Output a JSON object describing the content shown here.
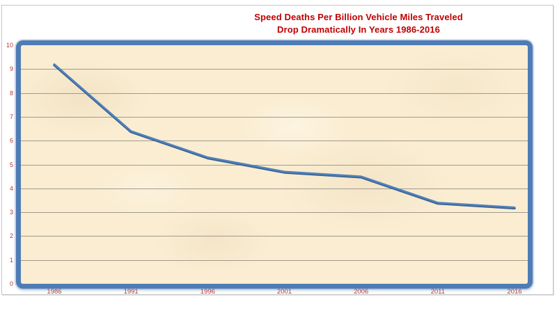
{
  "title": {
    "line1": "Speed Deaths Per Billion Vehicle Miles Traveled",
    "line2": "Drop Dramatically In Years 1986-2016"
  },
  "colors": {
    "title_red": "#C00000",
    "tick_label_red": "#B23B3B",
    "line_blue": "#4F81BD",
    "line_blue_shadow": "#3A618C",
    "frame_blue": "#4E7CB5",
    "plot_background_cream": "#FAEDD2",
    "gridline_gray": "#A09A8E",
    "chart_border_gray": "#C6C6C6"
  },
  "chart_data": {
    "type": "line",
    "title": "Speed Deaths Per Billion Vehicle Miles Traveled Drop Dramatically In Years 1986-2016",
    "x": [
      1986,
      1991,
      1996,
      2001,
      2006,
      2011,
      2016
    ],
    "values": [
      9.2,
      6.4,
      5.3,
      4.7,
      4.5,
      3.4,
      3.2
    ],
    "series": [
      {
        "name": "Speed deaths per billion vehicle miles traveled",
        "values": [
          9.2,
          6.4,
          5.3,
          4.7,
          4.5,
          3.4,
          3.2
        ]
      }
    ],
    "xlabel": "",
    "ylabel": "",
    "xlim": [
      1986,
      2016
    ],
    "ylim": [
      0,
      10
    ],
    "y_ticks": [
      0,
      1,
      2,
      3,
      4,
      5,
      6,
      7,
      8,
      9,
      10
    ],
    "x_ticks": [
      1986,
      1991,
      1996,
      2001,
      2006,
      2011,
      2016
    ],
    "grid": "horizontal",
    "legend": "none"
  }
}
